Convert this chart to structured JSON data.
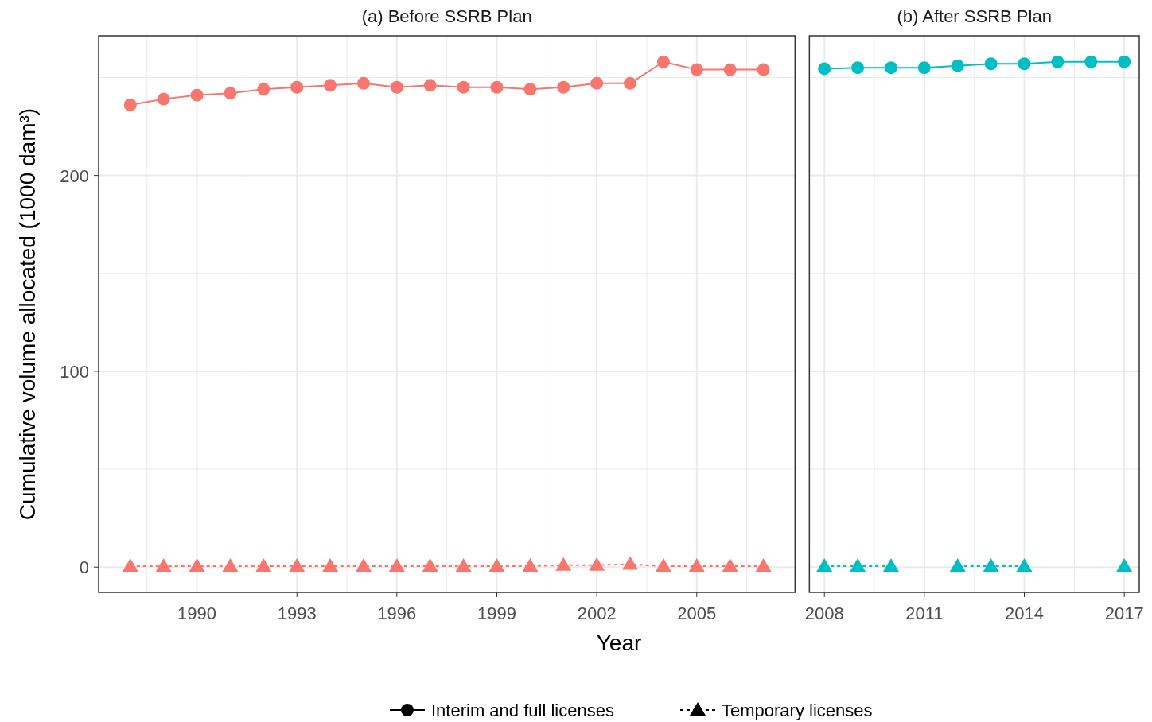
{
  "chart_data": [
    {
      "type": "line",
      "title": "(a) Before SSRB Plan",
      "xlabel": "Year",
      "ylabel": "Cumulative volume allocated (1000 dam³)",
      "annotations": [
        "Interim and full licenses",
        "Temporary licenses"
      ],
      "grid": true,
      "x": [
        1988,
        1989,
        1990,
        1991,
        1992,
        1993,
        1994,
        1995,
        1996,
        1997,
        1998,
        1999,
        2000,
        2001,
        2002,
        2003,
        2004,
        2005,
        2006,
        2007
      ],
      "xlim": [
        1987.05,
        2007.95
      ],
      "xticks": [
        {
          "value": 1988.5,
          "label": null
        },
        1990,
        {
          "value": 1991.5,
          "label": null
        },
        1993,
        {
          "value": 1994.5,
          "label": null
        },
        1996,
        {
          "value": 1997.5,
          "label": null
        },
        1999,
        {
          "value": 2000.5,
          "label": null
        },
        2002,
        {
          "value": 2003.5,
          "label": null
        },
        2005,
        {
          "value": 2006.5,
          "label": null
        }
      ],
      "ylim": [
        -12.9,
        271.3
      ],
      "yticks": [
        0,
        {
          "value": 50,
          "label": null
        },
        100,
        {
          "value": 150,
          "label": null
        },
        200,
        {
          "value": 250,
          "label": null
        }
      ],
      "series": [
        {
          "color": "#f8766d",
          "marker": "circle",
          "line_style": "solid",
          "values": [
            236,
            239,
            241,
            242,
            244,
            245,
            246,
            247,
            245,
            246,
            245,
            245,
            244,
            245,
            247,
            247,
            258,
            254,
            254,
            254
          ]
        },
        {
          "color": "#f8766d",
          "marker": "triangle",
          "line_style": "dashed",
          "values": [
            0.5,
            0.5,
            0.5,
            0.5,
            0.5,
            0.5,
            0.5,
            0.5,
            0.5,
            0.5,
            0.5,
            0.5,
            0.5,
            1,
            1,
            1.5,
            0.5,
            0.5,
            0.5,
            0.5
          ]
        }
      ]
    },
    {
      "type": "line",
      "title": "(b) After SSRB Plan",
      "grid": true,
      "tick_labels": "x",
      "x": [
        2008,
        2009,
        2010,
        2011,
        2012,
        2013,
        2014,
        2015,
        2016,
        2017
      ],
      "xlim": [
        2007.55,
        2017.45
      ],
      "xticks": [
        2008,
        {
          "value": 2009.5,
          "label": null
        },
        2011,
        {
          "value": 2012.5,
          "label": null
        },
        2014,
        {
          "value": 2015.5,
          "label": null
        },
        2017
      ],
      "ylim": [
        -12.9,
        271.3
      ],
      "yticks": [
        0,
        {
          "value": 50,
          "label": null
        },
        100,
        {
          "value": 150,
          "label": null
        },
        200,
        {
          "value": 250,
          "label": null
        }
      ],
      "series": [
        {
          "color": "#00bfc4",
          "marker": "circle",
          "line_style": "solid",
          "values": [
            254.5,
            255,
            255,
            255,
            256,
            257,
            257,
            258,
            258,
            258
          ]
        },
        {
          "color": "#00bfc4",
          "marker": "triangle",
          "line_style": "dashed",
          "values": [
            0.5,
            0.5,
            0.5,
            null,
            0.5,
            0.5,
            0.5,
            null,
            null,
            0.5
          ]
        }
      ]
    }
  ]
}
